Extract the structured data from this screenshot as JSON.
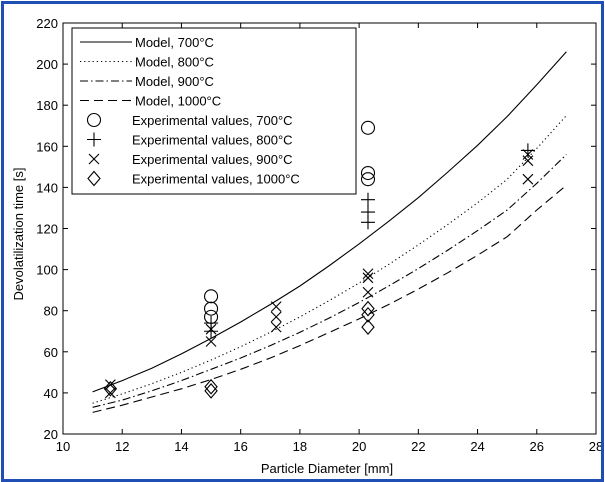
{
  "chart_data": {
    "type": "line",
    "xlabel": "Particle Diameter [mm]",
    "ylabel": "Devolatilization time [s]",
    "xlim": [
      10,
      28
    ],
    "ylim": [
      20,
      220
    ],
    "xticks": [
      10,
      12,
      14,
      16,
      18,
      20,
      22,
      24,
      26,
      28
    ],
    "yticks": [
      20,
      40,
      60,
      80,
      100,
      120,
      140,
      160,
      180,
      200,
      220
    ],
    "xtick_labels": [
      "10",
      "12",
      "14",
      "16",
      "18",
      "20",
      "22",
      "24",
      "26",
      "28"
    ],
    "ytick_labels": [
      "20",
      "40",
      "60",
      "80",
      "100",
      "120",
      "140",
      "160",
      "180",
      "200",
      "220"
    ],
    "grid": false,
    "legend_position": "top-left",
    "series": [
      {
        "name": "Model, 700°C",
        "kind": "line",
        "style": "solid",
        "x": [
          11,
          12,
          13,
          14,
          15,
          16,
          17,
          18,
          19,
          20,
          21,
          22,
          23,
          24,
          25,
          26,
          27
        ],
        "y": [
          40.5,
          46,
          52,
          59,
          66.5,
          74.5,
          83,
          92,
          102,
          112.5,
          123.5,
          135,
          147.5,
          160.5,
          174.5,
          190,
          206
        ]
      },
      {
        "name": "Model, 800°C",
        "kind": "line",
        "style": "dotted",
        "x": [
          11,
          12,
          13,
          14,
          15,
          16,
          17,
          18,
          19,
          20,
          21,
          22,
          23,
          24,
          25,
          26,
          27
        ],
        "y": [
          35,
          39.5,
          44.5,
          50,
          56,
          62.5,
          69.5,
          77,
          85,
          93.5,
          102.5,
          112,
          122,
          132.5,
          144,
          159,
          175
        ]
      },
      {
        "name": "Model, 900°C",
        "kind": "line",
        "style": "dashdot",
        "x": [
          11,
          12,
          13,
          14,
          15,
          16,
          17,
          18,
          19,
          20,
          21,
          22,
          23,
          24,
          25,
          26,
          27
        ],
        "y": [
          33,
          36.5,
          41,
          46,
          51.5,
          57,
          63,
          69.5,
          76.5,
          84,
          92,
          100.5,
          109.5,
          119,
          129,
          142,
          156
        ]
      },
      {
        "name": "Model, 1000°C",
        "kind": "line",
        "style": "dashed",
        "x": [
          11,
          12,
          13,
          14,
          15,
          16,
          17,
          18,
          19,
          20,
          21,
          22,
          23,
          24,
          25,
          26,
          27
        ],
        "y": [
          30.5,
          34,
          38,
          42,
          46.5,
          51.5,
          57,
          63,
          69.5,
          76,
          83,
          90.5,
          98.5,
          107,
          116,
          129,
          141
        ]
      },
      {
        "name": "Experimental values, 700°C",
        "kind": "marker",
        "marker": "circle",
        "x": [
          15.0,
          15.0,
          15.0,
          20.3,
          20.3,
          20.3
        ],
        "y": [
          87,
          81,
          77,
          169,
          147,
          144
        ]
      },
      {
        "name": "Experimental values, 800°C",
        "kind": "marker",
        "marker": "plus",
        "x": [
          15.0,
          15.0,
          20.3,
          20.3,
          20.3,
          25.7
        ],
        "y": [
          74,
          70,
          134,
          128,
          123,
          158
        ]
      },
      {
        "name": "Experimental values, 900°C",
        "kind": "marker",
        "marker": "x",
        "x": [
          11.6,
          11.6,
          15.0,
          15.0,
          17.2,
          17.2,
          17.2,
          20.3,
          20.3,
          20.3,
          25.7,
          25.7,
          25.7
        ],
        "y": [
          44,
          40,
          71,
          65,
          82,
          77,
          72,
          98,
          96,
          89,
          156,
          153,
          144
        ]
      },
      {
        "name": "Experimental values, 1000°C",
        "kind": "marker",
        "marker": "diamond",
        "x": [
          11.6,
          15.0,
          15.0,
          20.3,
          20.3,
          20.3
        ],
        "y": [
          42,
          43,
          41,
          81,
          78,
          72
        ]
      }
    ]
  }
}
